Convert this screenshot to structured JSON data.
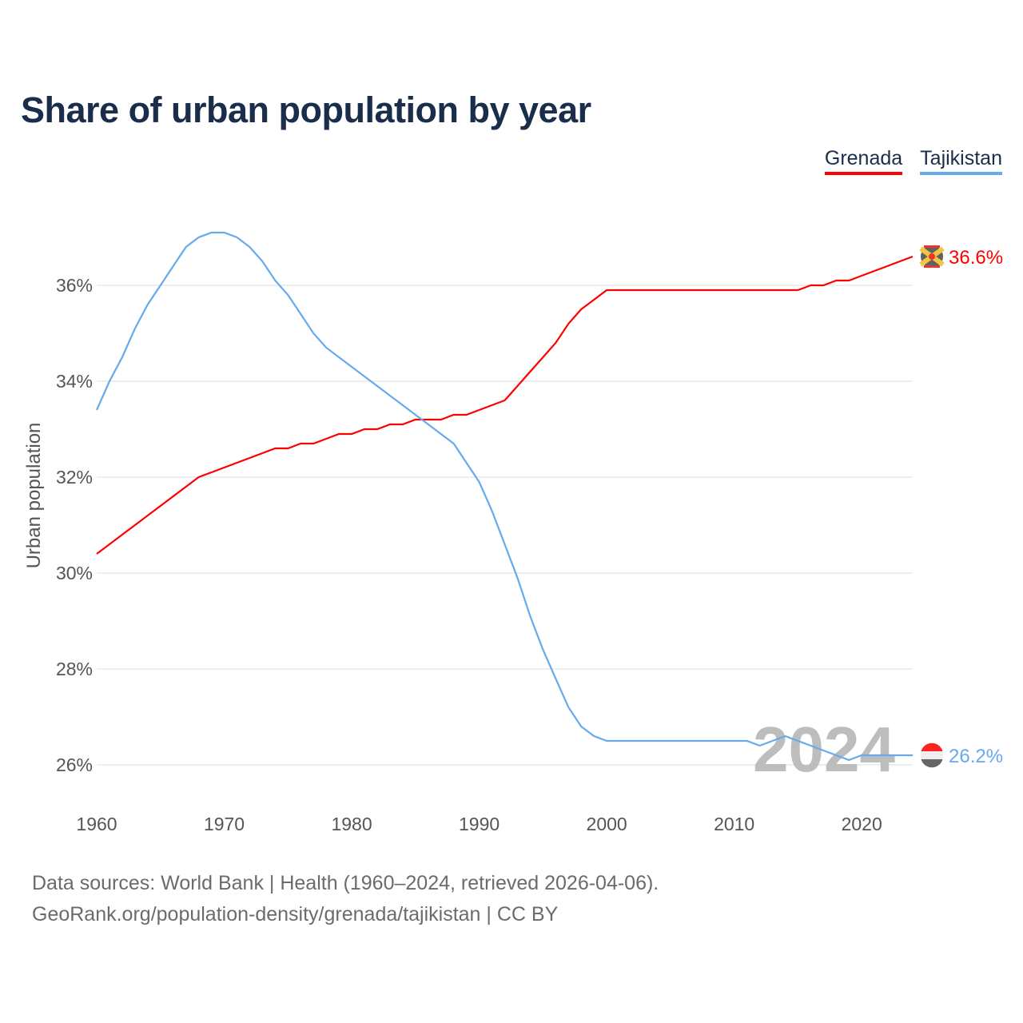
{
  "title": "Share of urban population by year",
  "legend": [
    {
      "name": "Grenada",
      "color": "#ff0000"
    },
    {
      "name": "Tajikistan",
      "color": "#66aaee"
    }
  ],
  "footer": {
    "line1": "Data sources: World Bank | Health (1960–2024, retrieved 2026-04-06).",
    "line2": "GeoRank.org/population-density/grenada/tajikistan | CC BY"
  },
  "chart_data": {
    "type": "line",
    "title": "Share of urban population by year",
    "xlabel": "",
    "ylabel": "Urban population",
    "xlim": [
      1960,
      2024
    ],
    "ylim": [
      25.2,
      37.5
    ],
    "grid": true,
    "legend_position": "top-right",
    "year_watermark": "2024",
    "x_ticks": [
      "1960",
      "1970",
      "1980",
      "1990",
      "2000",
      "2010",
      "2020"
    ],
    "y_ticks": [
      "26%",
      "28%",
      "30%",
      "32%",
      "34%",
      "36%"
    ],
    "x": [
      1960,
      1961,
      1962,
      1963,
      1964,
      1965,
      1966,
      1967,
      1968,
      1969,
      1970,
      1971,
      1972,
      1973,
      1974,
      1975,
      1976,
      1977,
      1978,
      1979,
      1980,
      1981,
      1982,
      1983,
      1984,
      1985,
      1986,
      1987,
      1988,
      1989,
      1990,
      1991,
      1992,
      1993,
      1994,
      1995,
      1996,
      1997,
      1998,
      1999,
      2000,
      2001,
      2002,
      2003,
      2004,
      2005,
      2006,
      2007,
      2008,
      2009,
      2010,
      2011,
      2012,
      2013,
      2014,
      2015,
      2016,
      2017,
      2018,
      2019,
      2020,
      2021,
      2022,
      2023,
      2024
    ],
    "series": [
      {
        "name": "Grenada",
        "color": "#ff0000",
        "end_label": "36.6%",
        "values": [
          30.4,
          30.6,
          30.8,
          31.0,
          31.2,
          31.4,
          31.6,
          31.8,
          32.0,
          32.1,
          32.2,
          32.3,
          32.4,
          32.5,
          32.6,
          32.6,
          32.7,
          32.7,
          32.8,
          32.9,
          32.9,
          33.0,
          33.0,
          33.1,
          33.1,
          33.2,
          33.2,
          33.2,
          33.3,
          33.3,
          33.4,
          33.5,
          33.6,
          33.9,
          34.2,
          34.5,
          34.8,
          35.2,
          35.5,
          35.7,
          35.9,
          35.9,
          35.9,
          35.9,
          35.9,
          35.9,
          35.9,
          35.9,
          35.9,
          35.9,
          35.9,
          35.9,
          35.9,
          35.9,
          35.9,
          35.9,
          36.0,
          36.0,
          36.1,
          36.1,
          36.2,
          36.3,
          36.4,
          36.5,
          36.6
        ]
      },
      {
        "name": "Tajikistan",
        "color": "#66aaee",
        "end_label": "26.2%",
        "values": [
          33.4,
          34.0,
          34.5,
          35.1,
          35.6,
          36.0,
          36.4,
          36.8,
          37.0,
          37.1,
          37.1,
          37.0,
          36.8,
          36.5,
          36.1,
          35.8,
          35.4,
          35.0,
          34.7,
          34.5,
          34.3,
          34.1,
          33.9,
          33.7,
          33.5,
          33.3,
          33.1,
          32.9,
          32.7,
          32.3,
          31.9,
          31.3,
          30.6,
          29.9,
          29.1,
          28.4,
          27.8,
          27.2,
          26.8,
          26.6,
          26.5,
          26.5,
          26.5,
          26.5,
          26.5,
          26.5,
          26.5,
          26.5,
          26.5,
          26.5,
          26.5,
          26.5,
          26.4,
          26.5,
          26.6,
          26.5,
          26.4,
          26.3,
          26.2,
          26.1,
          26.2,
          26.2,
          26.2,
          26.2,
          26.2
        ]
      }
    ]
  }
}
